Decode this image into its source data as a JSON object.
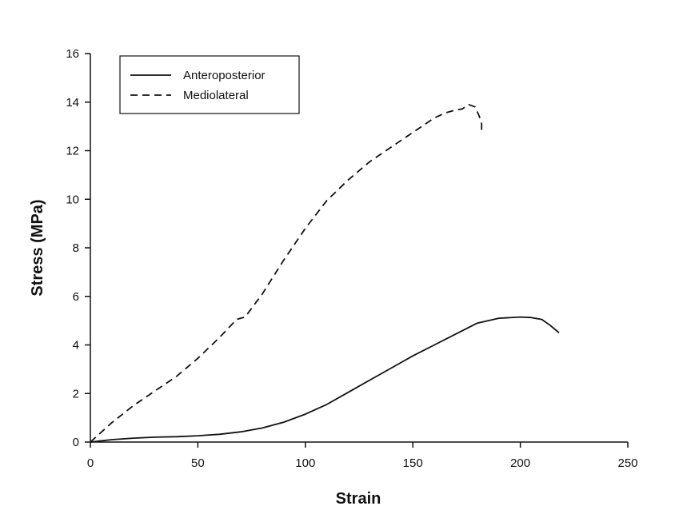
{
  "chart_data": {
    "type": "line",
    "title": "",
    "xlabel": "Strain",
    "ylabel": "Stress (MPa)",
    "xlim": [
      0,
      250
    ],
    "ylim": [
      0,
      16
    ],
    "xticks": [
      0,
      50,
      100,
      150,
      200,
      250
    ],
    "yticks": [
      0,
      2,
      4,
      6,
      8,
      10,
      12,
      14,
      16
    ],
    "grid": false,
    "legend_position": "top-left",
    "series": [
      {
        "name": "Anteroposterior",
        "style": "solid",
        "color": "#111111",
        "x": [
          0,
          10,
          20,
          30,
          40,
          50,
          60,
          70,
          80,
          90,
          100,
          110,
          120,
          130,
          140,
          150,
          160,
          170,
          180,
          190,
          200,
          205,
          210,
          214,
          218
        ],
        "y": [
          0,
          0.1,
          0.16,
          0.2,
          0.22,
          0.26,
          0.32,
          0.42,
          0.58,
          0.82,
          1.15,
          1.55,
          2.05,
          2.55,
          3.05,
          3.55,
          4.0,
          4.45,
          4.9,
          5.1,
          5.15,
          5.13,
          5.05,
          4.8,
          4.5
        ]
      },
      {
        "name": "Mediolateral",
        "style": "dashed",
        "color": "#111111",
        "x": [
          0,
          10,
          20,
          30,
          40,
          50,
          60,
          68,
          72,
          80,
          90,
          100,
          110,
          120,
          130,
          140,
          150,
          160,
          165,
          170,
          173,
          176,
          179,
          181,
          182,
          182
        ],
        "y": [
          0,
          0.8,
          1.5,
          2.1,
          2.7,
          3.45,
          4.3,
          5.05,
          5.15,
          6.1,
          7.5,
          8.8,
          9.95,
          10.8,
          11.55,
          12.15,
          12.75,
          13.35,
          13.55,
          13.68,
          13.72,
          13.9,
          13.8,
          13.4,
          13.1,
          12.8
        ]
      }
    ]
  }
}
